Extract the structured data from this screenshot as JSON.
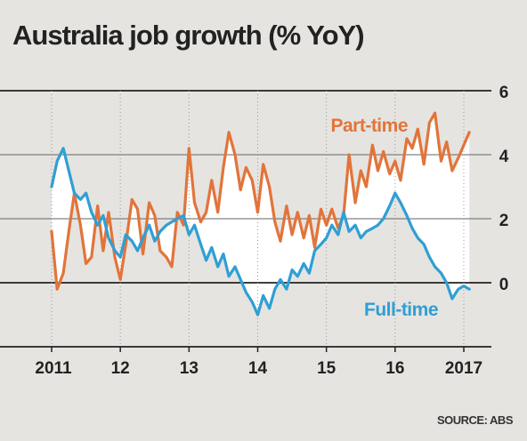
{
  "chart_data": {
    "type": "line",
    "title": "Australia job growth (% YoY)",
    "source": "SOURCE: ABS",
    "y_ticks": [
      "6",
      "4",
      "2",
      "0"
    ],
    "x_ticks": [
      "2011",
      "12",
      "13",
      "14",
      "15",
      "16",
      "2017"
    ],
    "ylim": [
      -1.5,
      6
    ],
    "xlim": [
      2011,
      2017.3
    ],
    "grid": "horizontal",
    "series": [
      {
        "name": "Part-time",
        "color": "#e2743a",
        "x": [
          2011.0,
          2011.08,
          2011.17,
          2011.25,
          2011.33,
          2011.42,
          2011.5,
          2011.58,
          2011.67,
          2011.75,
          2011.83,
          2011.92,
          2012.0,
          2012.08,
          2012.17,
          2012.25,
          2012.33,
          2012.42,
          2012.5,
          2012.58,
          2012.67,
          2012.75,
          2012.83,
          2012.92,
          2013.0,
          2013.08,
          2013.17,
          2013.25,
          2013.33,
          2013.42,
          2013.5,
          2013.58,
          2013.67,
          2013.75,
          2013.83,
          2013.92,
          2014.0,
          2014.08,
          2014.17,
          2014.25,
          2014.33,
          2014.42,
          2014.5,
          2014.58,
          2014.67,
          2014.75,
          2014.83,
          2014.92,
          2015.0,
          2015.08,
          2015.17,
          2015.25,
          2015.33,
          2015.42,
          2015.5,
          2015.58,
          2015.67,
          2015.75,
          2015.83,
          2015.92,
          2016.0,
          2016.08,
          2016.17,
          2016.25,
          2016.33,
          2016.42,
          2016.5,
          2016.58,
          2016.67,
          2016.75,
          2016.83,
          2016.92,
          2017.0,
          2017.08
        ],
        "y": [
          1.6,
          -0.2,
          0.3,
          1.6,
          2.8,
          1.8,
          0.6,
          0.8,
          2.4,
          1.0,
          2.2,
          0.8,
          0.1,
          1.2,
          2.6,
          2.3,
          0.9,
          2.5,
          2.1,
          1.0,
          0.8,
          0.5,
          2.2,
          1.8,
          4.2,
          2.5,
          1.9,
          2.2,
          3.2,
          2.2,
          3.6,
          4.7,
          4.0,
          2.9,
          3.6,
          3.2,
          2.2,
          3.7,
          3.0,
          1.9,
          1.3,
          2.4,
          1.5,
          2.2,
          1.4,
          2.1,
          1.1,
          2.3,
          1.8,
          2.3,
          1.7,
          2.1,
          4.0,
          2.5,
          3.5,
          3.0,
          4.3,
          3.5,
          4.1,
          3.4,
          3.8,
          3.2,
          4.5,
          4.2,
          4.8,
          3.7,
          5.0,
          5.3,
          3.8,
          4.4,
          3.5,
          3.9,
          4.3,
          4.7
        ]
      },
      {
        "name": "Full-time",
        "color": "#2f9fd4",
        "x": [
          2011.0,
          2011.08,
          2011.17,
          2011.25,
          2011.33,
          2011.42,
          2011.5,
          2011.58,
          2011.67,
          2011.75,
          2011.83,
          2011.92,
          2012.0,
          2012.08,
          2012.17,
          2012.25,
          2012.33,
          2012.42,
          2012.5,
          2012.58,
          2012.67,
          2012.75,
          2012.83,
          2012.92,
          2013.0,
          2013.08,
          2013.17,
          2013.25,
          2013.33,
          2013.42,
          2013.5,
          2013.58,
          2013.67,
          2013.75,
          2013.83,
          2013.92,
          2014.0,
          2014.08,
          2014.17,
          2014.25,
          2014.33,
          2014.42,
          2014.5,
          2014.58,
          2014.67,
          2014.75,
          2014.83,
          2014.92,
          2015.0,
          2015.08,
          2015.17,
          2015.25,
          2015.33,
          2015.42,
          2015.5,
          2015.58,
          2015.67,
          2015.75,
          2015.83,
          2015.92,
          2016.0,
          2016.08,
          2016.17,
          2016.25,
          2016.33,
          2016.42,
          2016.5,
          2016.58,
          2016.67,
          2016.75,
          2016.83,
          2016.92,
          2017.0,
          2017.08
        ],
        "y": [
          3.0,
          3.8,
          4.2,
          3.5,
          2.8,
          2.6,
          2.8,
          2.2,
          1.8,
          2.1,
          1.4,
          1.0,
          0.8,
          1.5,
          1.3,
          1.0,
          1.4,
          1.8,
          1.3,
          1.6,
          1.8,
          1.9,
          2.0,
          2.1,
          1.5,
          1.8,
          1.2,
          0.7,
          1.1,
          0.5,
          0.9,
          0.2,
          0.5,
          0.1,
          -0.3,
          -0.6,
          -1.0,
          -0.4,
          -0.8,
          -0.2,
          0.1,
          -0.2,
          0.4,
          0.2,
          0.6,
          0.3,
          1.0,
          1.2,
          1.4,
          1.8,
          1.5,
          2.2,
          1.6,
          1.8,
          1.4,
          1.6,
          1.7,
          1.8,
          2.0,
          2.4,
          2.8,
          2.5,
          2.1,
          1.7,
          1.4,
          1.2,
          0.8,
          0.5,
          0.3,
          0.0,
          -0.5,
          -0.2,
          -0.1,
          -0.2
        ]
      }
    ]
  }
}
